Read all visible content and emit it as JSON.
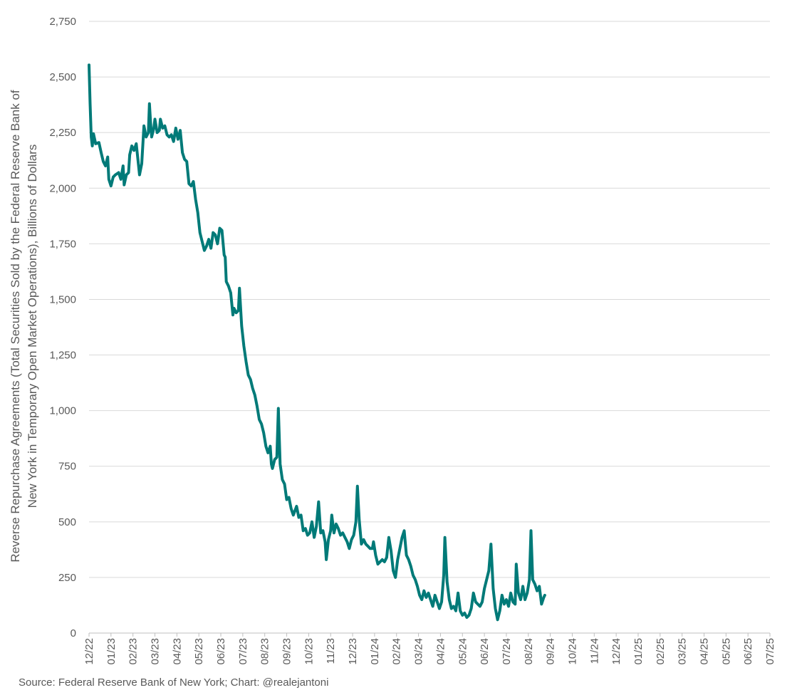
{
  "chart_data": {
    "type": "line",
    "ylabel_lines": [
      "Reverse Repurchase Agreements (Total Securities Sold by the Federal Reserve Bank of",
      "New York in Temporary Open Market Operations), Billions of Dollars"
    ],
    "ylim": [
      0,
      2750
    ],
    "yticks": [
      0,
      250,
      500,
      750,
      1000,
      1250,
      1500,
      1750,
      2000,
      2250,
      2500,
      2750
    ],
    "ytick_labels": [
      "0",
      "250",
      "500",
      "750",
      "1,000",
      "1,250",
      "1,500",
      "1,750",
      "2,000",
      "2,250",
      "2,500",
      "2,750"
    ],
    "x_tick_labels": [
      "12/22",
      "01/23",
      "02/23",
      "03/23",
      "04/23",
      "05/23",
      "06/23",
      "07/23",
      "08/23",
      "09/23",
      "10/23",
      "11/23",
      "12/23",
      "01/24",
      "02/24",
      "03/24",
      "04/24",
      "05/24",
      "06/24",
      "07/24",
      "08/24",
      "09/24",
      "10/24",
      "11/24",
      "12/24",
      "01/25",
      "02/25",
      "03/25",
      "04/25",
      "05/25",
      "06/25",
      "07/25"
    ],
    "grid": true,
    "line_color": "#007a78",
    "series": [
      {
        "points": [
          [
            0.0,
            2554
          ],
          [
            0.05,
            2380
          ],
          [
            0.1,
            2230
          ],
          [
            0.15,
            2190
          ],
          [
            0.2,
            2245
          ],
          [
            0.3,
            2200
          ],
          [
            0.45,
            2205
          ],
          [
            0.55,
            2160
          ],
          [
            0.65,
            2120
          ],
          [
            0.75,
            2100
          ],
          [
            0.85,
            2140
          ],
          [
            0.9,
            2040
          ],
          [
            1.0,
            2010
          ],
          [
            1.1,
            2050
          ],
          [
            1.2,
            2060
          ],
          [
            1.35,
            2070
          ],
          [
            1.45,
            2040
          ],
          [
            1.55,
            2100
          ],
          [
            1.6,
            2015
          ],
          [
            1.7,
            2060
          ],
          [
            1.8,
            2070
          ],
          [
            1.85,
            2150
          ],
          [
            1.95,
            2190
          ],
          [
            2.05,
            2170
          ],
          [
            2.15,
            2200
          ],
          [
            2.3,
            2060
          ],
          [
            2.4,
            2110
          ],
          [
            2.5,
            2280
          ],
          [
            2.6,
            2230
          ],
          [
            2.7,
            2250
          ],
          [
            2.75,
            2380
          ],
          [
            2.8,
            2300
          ],
          [
            2.85,
            2230
          ],
          [
            2.95,
            2270
          ],
          [
            3.0,
            2310
          ],
          [
            3.05,
            2280
          ],
          [
            3.1,
            2250
          ],
          [
            3.2,
            2260
          ],
          [
            3.25,
            2310
          ],
          [
            3.35,
            2270
          ],
          [
            3.45,
            2280
          ],
          [
            3.55,
            2240
          ],
          [
            3.65,
            2230
          ],
          [
            3.75,
            2240
          ],
          [
            3.85,
            2210
          ],
          [
            3.95,
            2270
          ],
          [
            4.05,
            2220
          ],
          [
            4.15,
            2260
          ],
          [
            4.25,
            2160
          ],
          [
            4.35,
            2130
          ],
          [
            4.45,
            2120
          ],
          [
            4.55,
            2020
          ],
          [
            4.65,
            2010
          ],
          [
            4.75,
            2030
          ],
          [
            4.85,
            1950
          ],
          [
            4.95,
            1890
          ],
          [
            5.05,
            1800
          ],
          [
            5.15,
            1760
          ],
          [
            5.25,
            1720
          ],
          [
            5.35,
            1740
          ],
          [
            5.45,
            1770
          ],
          [
            5.55,
            1730
          ],
          [
            5.65,
            1800
          ],
          [
            5.75,
            1790
          ],
          [
            5.85,
            1750
          ],
          [
            5.95,
            1820
          ],
          [
            6.05,
            1810
          ],
          [
            6.15,
            1700
          ],
          [
            6.2,
            1690
          ],
          [
            6.25,
            1580
          ],
          [
            6.35,
            1560
          ],
          [
            6.45,
            1530
          ],
          [
            6.55,
            1430
          ],
          [
            6.6,
            1460
          ],
          [
            6.7,
            1440
          ],
          [
            6.8,
            1450
          ],
          [
            6.85,
            1550
          ],
          [
            6.95,
            1380
          ],
          [
            7.05,
            1290
          ],
          [
            7.15,
            1220
          ],
          [
            7.25,
            1160
          ],
          [
            7.35,
            1140
          ],
          [
            7.45,
            1100
          ],
          [
            7.55,
            1070
          ],
          [
            7.65,
            1020
          ],
          [
            7.75,
            960
          ],
          [
            7.85,
            940
          ],
          [
            7.95,
            900
          ],
          [
            8.05,
            840
          ],
          [
            8.15,
            810
          ],
          [
            8.25,
            840
          ],
          [
            8.3,
            760
          ],
          [
            8.35,
            740
          ],
          [
            8.45,
            780
          ],
          [
            8.55,
            790
          ],
          [
            8.62,
            1010
          ],
          [
            8.7,
            760
          ],
          [
            8.8,
            690
          ],
          [
            8.9,
            670
          ],
          [
            9.0,
            600
          ],
          [
            9.1,
            610
          ],
          [
            9.2,
            560
          ],
          [
            9.3,
            530
          ],
          [
            9.45,
            570
          ],
          [
            9.55,
            520
          ],
          [
            9.65,
            530
          ],
          [
            9.75,
            460
          ],
          [
            9.85,
            470
          ],
          [
            9.95,
            440
          ],
          [
            10.05,
            450
          ],
          [
            10.15,
            500
          ],
          [
            10.25,
            430
          ],
          [
            10.35,
            480
          ],
          [
            10.45,
            590
          ],
          [
            10.55,
            450
          ],
          [
            10.65,
            460
          ],
          [
            10.75,
            410
          ],
          [
            10.8,
            330
          ],
          [
            10.9,
            420
          ],
          [
            11.0,
            460
          ],
          [
            11.05,
            530
          ],
          [
            11.15,
            450
          ],
          [
            11.25,
            490
          ],
          [
            11.35,
            470
          ],
          [
            11.45,
            440
          ],
          [
            11.55,
            450
          ],
          [
            11.65,
            430
          ],
          [
            11.75,
            410
          ],
          [
            11.85,
            380
          ],
          [
            11.95,
            420
          ],
          [
            12.05,
            440
          ],
          [
            12.15,
            500
          ],
          [
            12.22,
            660
          ],
          [
            12.3,
            510
          ],
          [
            12.4,
            400
          ],
          [
            12.5,
            420
          ],
          [
            12.6,
            400
          ],
          [
            12.7,
            390
          ],
          [
            12.8,
            380
          ],
          [
            12.9,
            380
          ],
          [
            12.95,
            410
          ],
          [
            13.05,
            350
          ],
          [
            13.15,
            310
          ],
          [
            13.25,
            320
          ],
          [
            13.35,
            330
          ],
          [
            13.45,
            320
          ],
          [
            13.55,
            340
          ],
          [
            13.65,
            430
          ],
          [
            13.75,
            370
          ],
          [
            13.85,
            280
          ],
          [
            13.95,
            250
          ],
          [
            14.05,
            330
          ],
          [
            14.15,
            380
          ],
          [
            14.25,
            430
          ],
          [
            14.35,
            460
          ],
          [
            14.45,
            350
          ],
          [
            14.55,
            330
          ],
          [
            14.65,
            300
          ],
          [
            14.75,
            260
          ],
          [
            14.85,
            240
          ],
          [
            14.95,
            210
          ],
          [
            15.05,
            170
          ],
          [
            15.15,
            150
          ],
          [
            15.25,
            190
          ],
          [
            15.35,
            160
          ],
          [
            15.45,
            180
          ],
          [
            15.55,
            150
          ],
          [
            15.65,
            120
          ],
          [
            15.75,
            170
          ],
          [
            15.85,
            140
          ],
          [
            15.95,
            110
          ],
          [
            16.05,
            140
          ],
          [
            16.15,
            260
          ],
          [
            16.2,
            430
          ],
          [
            16.3,
            230
          ],
          [
            16.4,
            150
          ],
          [
            16.5,
            110
          ],
          [
            16.6,
            120
          ],
          [
            16.7,
            100
          ],
          [
            16.8,
            180
          ],
          [
            16.9,
            100
          ],
          [
            17.0,
            80
          ],
          [
            17.1,
            90
          ],
          [
            17.2,
            70
          ],
          [
            17.3,
            80
          ],
          [
            17.4,
            110
          ],
          [
            17.5,
            180
          ],
          [
            17.6,
            140
          ],
          [
            17.7,
            130
          ],
          [
            17.8,
            120
          ],
          [
            17.9,
            140
          ],
          [
            18.0,
            200
          ],
          [
            18.1,
            240
          ],
          [
            18.2,
            280
          ],
          [
            18.3,
            400
          ],
          [
            18.4,
            200
          ],
          [
            18.5,
            110
          ],
          [
            18.6,
            60
          ],
          [
            18.7,
            100
          ],
          [
            18.8,
            170
          ],
          [
            18.9,
            130
          ],
          [
            19.0,
            150
          ],
          [
            19.1,
            120
          ],
          [
            19.2,
            180
          ],
          [
            19.3,
            140
          ],
          [
            19.4,
            130
          ],
          [
            19.45,
            310
          ],
          [
            19.55,
            180
          ],
          [
            19.65,
            150
          ],
          [
            19.75,
            210
          ],
          [
            19.85,
            150
          ],
          [
            19.95,
            180
          ],
          [
            20.05,
            240
          ],
          [
            20.12,
            460
          ],
          [
            20.2,
            240
          ],
          [
            20.3,
            220
          ],
          [
            20.4,
            190
          ],
          [
            20.5,
            210
          ],
          [
            20.6,
            130
          ],
          [
            20.7,
            160
          ],
          [
            20.75,
            170
          ]
        ]
      }
    ]
  },
  "source_text": "Source: Federal Reserve Bank of New York; Chart: @realejantoni"
}
